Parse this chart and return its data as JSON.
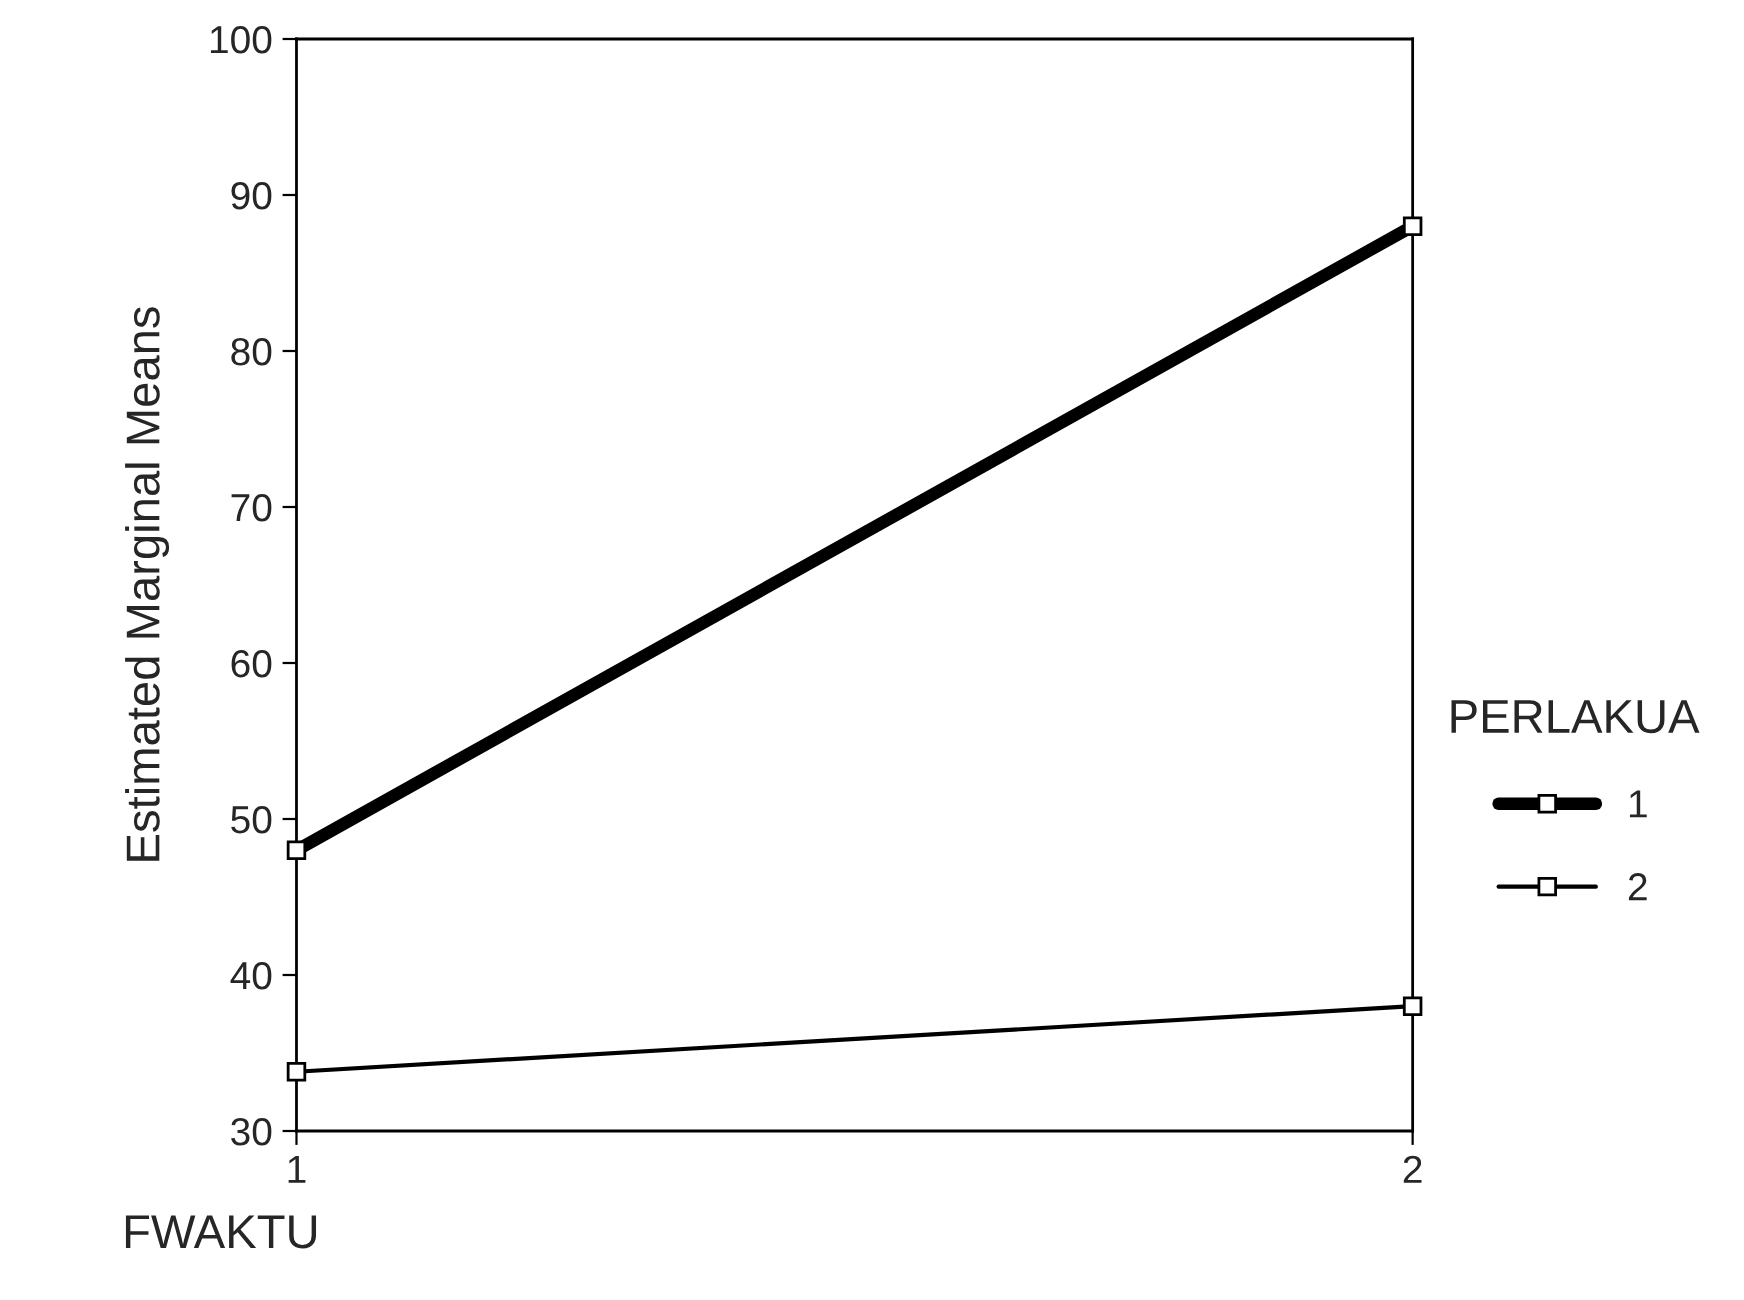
{
  "chart_data": {
    "type": "line",
    "xlabel": "FWAKTU",
    "ylabel": "Estimated Marginal Means",
    "legend_title": "PERLAKUA",
    "x": [
      1,
      2
    ],
    "xlim": [
      1,
      2
    ],
    "xticks": [
      1,
      2
    ],
    "ylim": [
      30,
      100
    ],
    "yticks": [
      30,
      40,
      50,
      60,
      70,
      80,
      90,
      100
    ],
    "series": [
      {
        "name": "1",
        "color": "#000000",
        "values": [
          48,
          88
        ]
      },
      {
        "name": "2",
        "color": "#000000",
        "values": [
          33.8,
          38
        ]
      }
    ],
    "marker": "square",
    "line_style": "solid",
    "legend": "right",
    "grid": false
  }
}
